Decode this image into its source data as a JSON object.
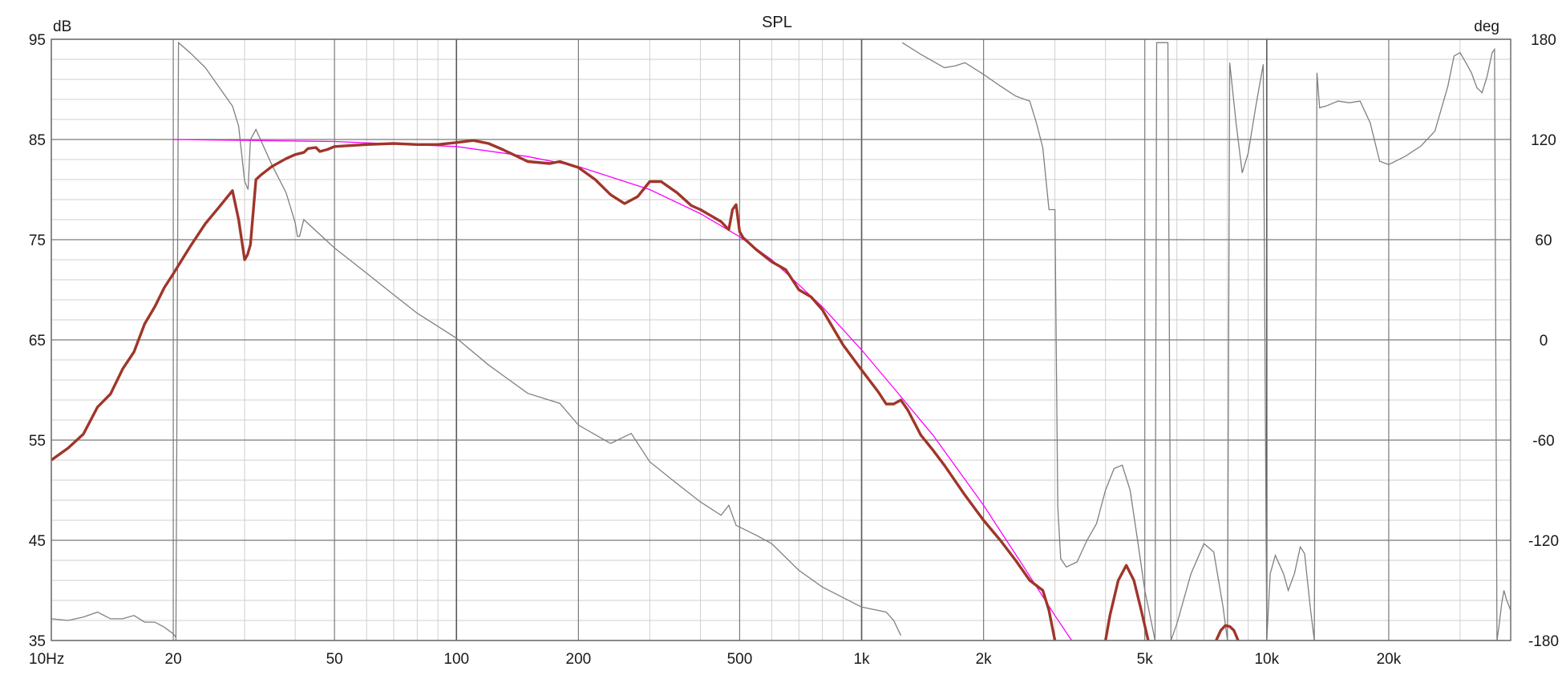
{
  "chart_data": {
    "type": "line",
    "title": "SPL",
    "y_unit_left": "dB",
    "y_unit_right": "deg",
    "x_scale": "log",
    "xlim": [
      10,
      40000
    ],
    "ylim": [
      35,
      95
    ],
    "y2lim": [
      -180,
      180
    ],
    "grid": true,
    "x_ticks": [
      {
        "value": 10,
        "label": "10Hz"
      },
      {
        "value": 20,
        "label": "20"
      },
      {
        "value": 50,
        "label": "50"
      },
      {
        "value": 100,
        "label": "100"
      },
      {
        "value": 200,
        "label": "200"
      },
      {
        "value": 500,
        "label": "500"
      },
      {
        "value": 1000,
        "label": "1k"
      },
      {
        "value": 2000,
        "label": "2k"
      },
      {
        "value": 5000,
        "label": "5k"
      },
      {
        "value": 10000,
        "label": "10k"
      },
      {
        "value": 20000,
        "label": "20k"
      }
    ],
    "y_ticks": [
      "95",
      "85",
      "75",
      "65",
      "55",
      "45",
      "35"
    ],
    "y2_ticks": [
      "180",
      "120",
      "60",
      "0",
      "-60",
      "-120",
      "-180"
    ],
    "colors": {
      "spl": "#a0352a",
      "target": "#ff00ff",
      "phase": "#808080",
      "grid_major": "#7a7a7a",
      "grid_minor": "#cfcfcf"
    },
    "series": [
      {
        "id": "spl",
        "axis": "left",
        "points": [
          [
            10,
            53
          ],
          [
            11,
            54.2
          ],
          [
            12,
            55.6
          ],
          [
            13,
            58.3
          ],
          [
            14,
            59.6
          ],
          [
            15,
            62.1
          ],
          [
            16,
            63.8
          ],
          [
            17,
            66.6
          ],
          [
            18,
            68.3
          ],
          [
            19,
            70.2
          ],
          [
            20,
            71.6
          ],
          [
            22,
            74.3
          ],
          [
            24,
            76.6
          ],
          [
            26,
            78.3
          ],
          [
            28,
            79.9
          ],
          [
            29,
            77
          ],
          [
            30,
            73
          ],
          [
            30.5,
            73.5
          ],
          [
            31,
            74.5
          ],
          [
            32,
            81
          ],
          [
            33,
            81.5
          ],
          [
            35,
            82.3
          ],
          [
            38,
            83.1
          ],
          [
            40,
            83.5
          ],
          [
            42,
            83.7
          ],
          [
            43,
            84.1
          ],
          [
            45,
            84.2
          ],
          [
            46,
            83.8
          ],
          [
            48,
            84
          ],
          [
            50,
            84.3
          ],
          [
            60,
            84.5
          ],
          [
            70,
            84.6
          ],
          [
            80,
            84.5
          ],
          [
            90,
            84.5
          ],
          [
            100,
            84.7
          ],
          [
            110,
            84.9
          ],
          [
            120,
            84.6
          ],
          [
            130,
            84
          ],
          [
            150,
            82.8
          ],
          [
            170,
            82.6
          ],
          [
            180,
            82.8
          ],
          [
            200,
            82.2
          ],
          [
            220,
            81
          ],
          [
            240,
            79.5
          ],
          [
            260,
            78.6
          ],
          [
            280,
            79.3
          ],
          [
            300,
            80.8
          ],
          [
            320,
            80.8
          ],
          [
            350,
            79.7
          ],
          [
            380,
            78.4
          ],
          [
            400,
            78
          ],
          [
            450,
            76.8
          ],
          [
            470,
            76
          ],
          [
            480,
            78
          ],
          [
            490,
            78.5
          ],
          [
            500,
            75.8
          ],
          [
            510,
            75.2
          ],
          [
            550,
            74
          ],
          [
            600,
            72.8
          ],
          [
            650,
            72
          ],
          [
            700,
            70
          ],
          [
            750,
            69.3
          ],
          [
            800,
            68
          ],
          [
            900,
            64.5
          ],
          [
            1000,
            62
          ],
          [
            1100,
            59.8
          ],
          [
            1150,
            58.6
          ],
          [
            1200,
            58.6
          ],
          [
            1250,
            59
          ],
          [
            1300,
            58
          ],
          [
            1400,
            55.5
          ],
          [
            1500,
            54
          ],
          [
            1600,
            52.5
          ],
          [
            1800,
            49.5
          ],
          [
            2000,
            47
          ],
          [
            2200,
            45
          ],
          [
            2400,
            43
          ],
          [
            2600,
            41
          ],
          [
            2800,
            40
          ],
          [
            2900,
            38
          ],
          [
            3000,
            35
          ]
        ]
      },
      {
        "id": "spl-4k-lobe",
        "axis": "left",
        "points": [
          [
            4000,
            35
          ],
          [
            4100,
            37.5
          ],
          [
            4300,
            41
          ],
          [
            4500,
            42.5
          ],
          [
            4700,
            41
          ],
          [
            4900,
            38
          ],
          [
            5100,
            35
          ]
        ]
      },
      {
        "id": "spl-8k-lobe",
        "axis": "left",
        "points": [
          [
            7500,
            35
          ],
          [
            7700,
            36
          ],
          [
            7900,
            36.5
          ],
          [
            8100,
            36.4
          ],
          [
            8300,
            36
          ],
          [
            8500,
            35
          ]
        ]
      },
      {
        "id": "target",
        "axis": "left",
        "points": [
          [
            20,
            85
          ],
          [
            50,
            84.8
          ],
          [
            100,
            84.3
          ],
          [
            150,
            83.3
          ],
          [
            200,
            82.3
          ],
          [
            300,
            80
          ],
          [
            400,
            77.6
          ],
          [
            500,
            75.3
          ],
          [
            600,
            73
          ],
          [
            700,
            70.5
          ],
          [
            800,
            68.3
          ],
          [
            1000,
            64
          ],
          [
            1200,
            60.2
          ],
          [
            1500,
            55.5
          ],
          [
            2000,
            48.5
          ],
          [
            2500,
            42.5
          ],
          [
            3000,
            37.5
          ],
          [
            3300,
            35
          ]
        ]
      },
      {
        "id": "phase",
        "axis": "right",
        "segments": [
          [
            [
              10,
              -167
            ],
            [
              11,
              -168
            ],
            [
              12,
              -166
            ],
            [
              13,
              -163
            ],
            [
              14,
              -167
            ],
            [
              15,
              -167
            ],
            [
              16,
              -165
            ],
            [
              17,
              -169
            ],
            [
              18,
              -169
            ],
            [
              19,
              -172
            ],
            [
              20,
              -176
            ],
            [
              20.3,
              -178
            ]
          ],
          [
            [
              20.3,
              -180
            ],
            [
              20.6,
              178
            ],
            [
              22,
              172
            ],
            [
              24,
              163
            ],
            [
              26,
              151
            ],
            [
              28,
              140
            ],
            [
              29,
              128
            ],
            [
              30,
              95
            ],
            [
              30.6,
              90
            ],
            [
              31,
              120
            ],
            [
              32,
              126
            ],
            [
              35,
              105
            ],
            [
              38,
              88
            ],
            [
              40,
              70
            ],
            [
              40.5,
              62
            ],
            [
              41,
              62
            ],
            [
              42,
              72
            ],
            [
              50,
              55
            ],
            [
              60,
              40
            ],
            [
              70,
              27
            ],
            [
              80,
              16
            ],
            [
              100,
              1
            ],
            [
              120,
              -15
            ],
            [
              150,
              -32
            ],
            [
              180,
              -38
            ],
            [
              200,
              -51
            ],
            [
              240,
              -62
            ],
            [
              270,
              -56
            ],
            [
              300,
              -73
            ],
            [
              350,
              -86
            ],
            [
              400,
              -97
            ],
            [
              450,
              -105
            ],
            [
              470,
              -99
            ],
            [
              490,
              -111
            ],
            [
              550,
              -117
            ],
            [
              600,
              -122
            ],
            [
              700,
              -138
            ],
            [
              800,
              -148
            ],
            [
              1000,
              -160
            ],
            [
              1100,
              -162
            ],
            [
              1150,
              -163
            ],
            [
              1200,
              -168
            ],
            [
              1250,
              -177
            ]
          ],
          [
            [
              1260,
              178
            ],
            [
              1400,
              171
            ],
            [
              1600,
              163
            ],
            [
              1700,
              164
            ],
            [
              1800,
              166
            ],
            [
              2000,
              159
            ],
            [
              2200,
              152
            ],
            [
              2400,
              146
            ],
            [
              2600,
              143
            ],
            [
              2700,
              130
            ],
            [
              2800,
              115
            ],
            [
              2900,
              78
            ],
            [
              3000,
              78
            ],
            [
              3050,
              -100
            ],
            [
              3100,
              -131
            ],
            [
              3200,
              -136
            ],
            [
              3400,
              -133
            ],
            [
              3600,
              -120
            ],
            [
              3800,
              -110
            ],
            [
              4000,
              -90
            ],
            [
              4200,
              -77
            ],
            [
              4400,
              -75
            ],
            [
              4600,
              -90
            ],
            [
              4800,
              -120
            ],
            [
              5000,
              -150
            ],
            [
              5200,
              -170
            ],
            [
              5300,
              -180
            ]
          ],
          [
            [
              5300,
              -180
            ],
            [
              5350,
              178
            ],
            [
              5700,
              178
            ],
            [
              5800,
              -180
            ]
          ],
          [
            [
              5800,
              -180
            ],
            [
              6000,
              -170
            ],
            [
              6500,
              -140
            ],
            [
              7000,
              -122
            ],
            [
              7400,
              -127
            ],
            [
              7800,
              -160
            ],
            [
              8000,
              -180
            ]
          ],
          [
            [
              8000,
              -180
            ],
            [
              8100,
              166
            ],
            [
              8400,
              130
            ],
            [
              8700,
              100
            ],
            [
              9000,
              112
            ],
            [
              9400,
              140
            ],
            [
              9800,
              165
            ],
            [
              10000,
              -180
            ]
          ],
          [
            [
              10000,
              -180
            ],
            [
              10200,
              -140
            ],
            [
              10500,
              -129
            ],
            [
              11000,
              -140
            ],
            [
              11300,
              -150
            ],
            [
              11700,
              -140
            ],
            [
              12100,
              -124
            ],
            [
              12400,
              -128
            ],
            [
              12800,
              -160
            ],
            [
              13100,
              -180
            ]
          ],
          [
            [
              13100,
              -180
            ],
            [
              13300,
              160
            ],
            [
              13500,
              139
            ],
            [
              14000,
              140
            ],
            [
              15000,
              143
            ],
            [
              16000,
              142
            ],
            [
              17000,
              143
            ],
            [
              18000,
              130
            ],
            [
              19000,
              107
            ],
            [
              20000,
              105
            ],
            [
              22000,
              110
            ],
            [
              24000,
              116
            ],
            [
              26000,
              125
            ],
            [
              28000,
              152
            ],
            [
              29000,
              170
            ],
            [
              30000,
              172
            ],
            [
              31000,
              166
            ],
            [
              32000,
              160
            ],
            [
              33000,
              151
            ],
            [
              34000,
              148
            ],
            [
              35000,
              158
            ],
            [
              36000,
              172
            ],
            [
              36500,
              174
            ],
            [
              37000,
              -180
            ]
          ],
          [
            [
              37000,
              -180
            ],
            [
              37500,
              -170
            ],
            [
              38000,
              -158
            ],
            [
              38500,
              -150
            ],
            [
              39000,
              -155
            ],
            [
              40000,
              -162
            ]
          ]
        ]
      }
    ]
  }
}
